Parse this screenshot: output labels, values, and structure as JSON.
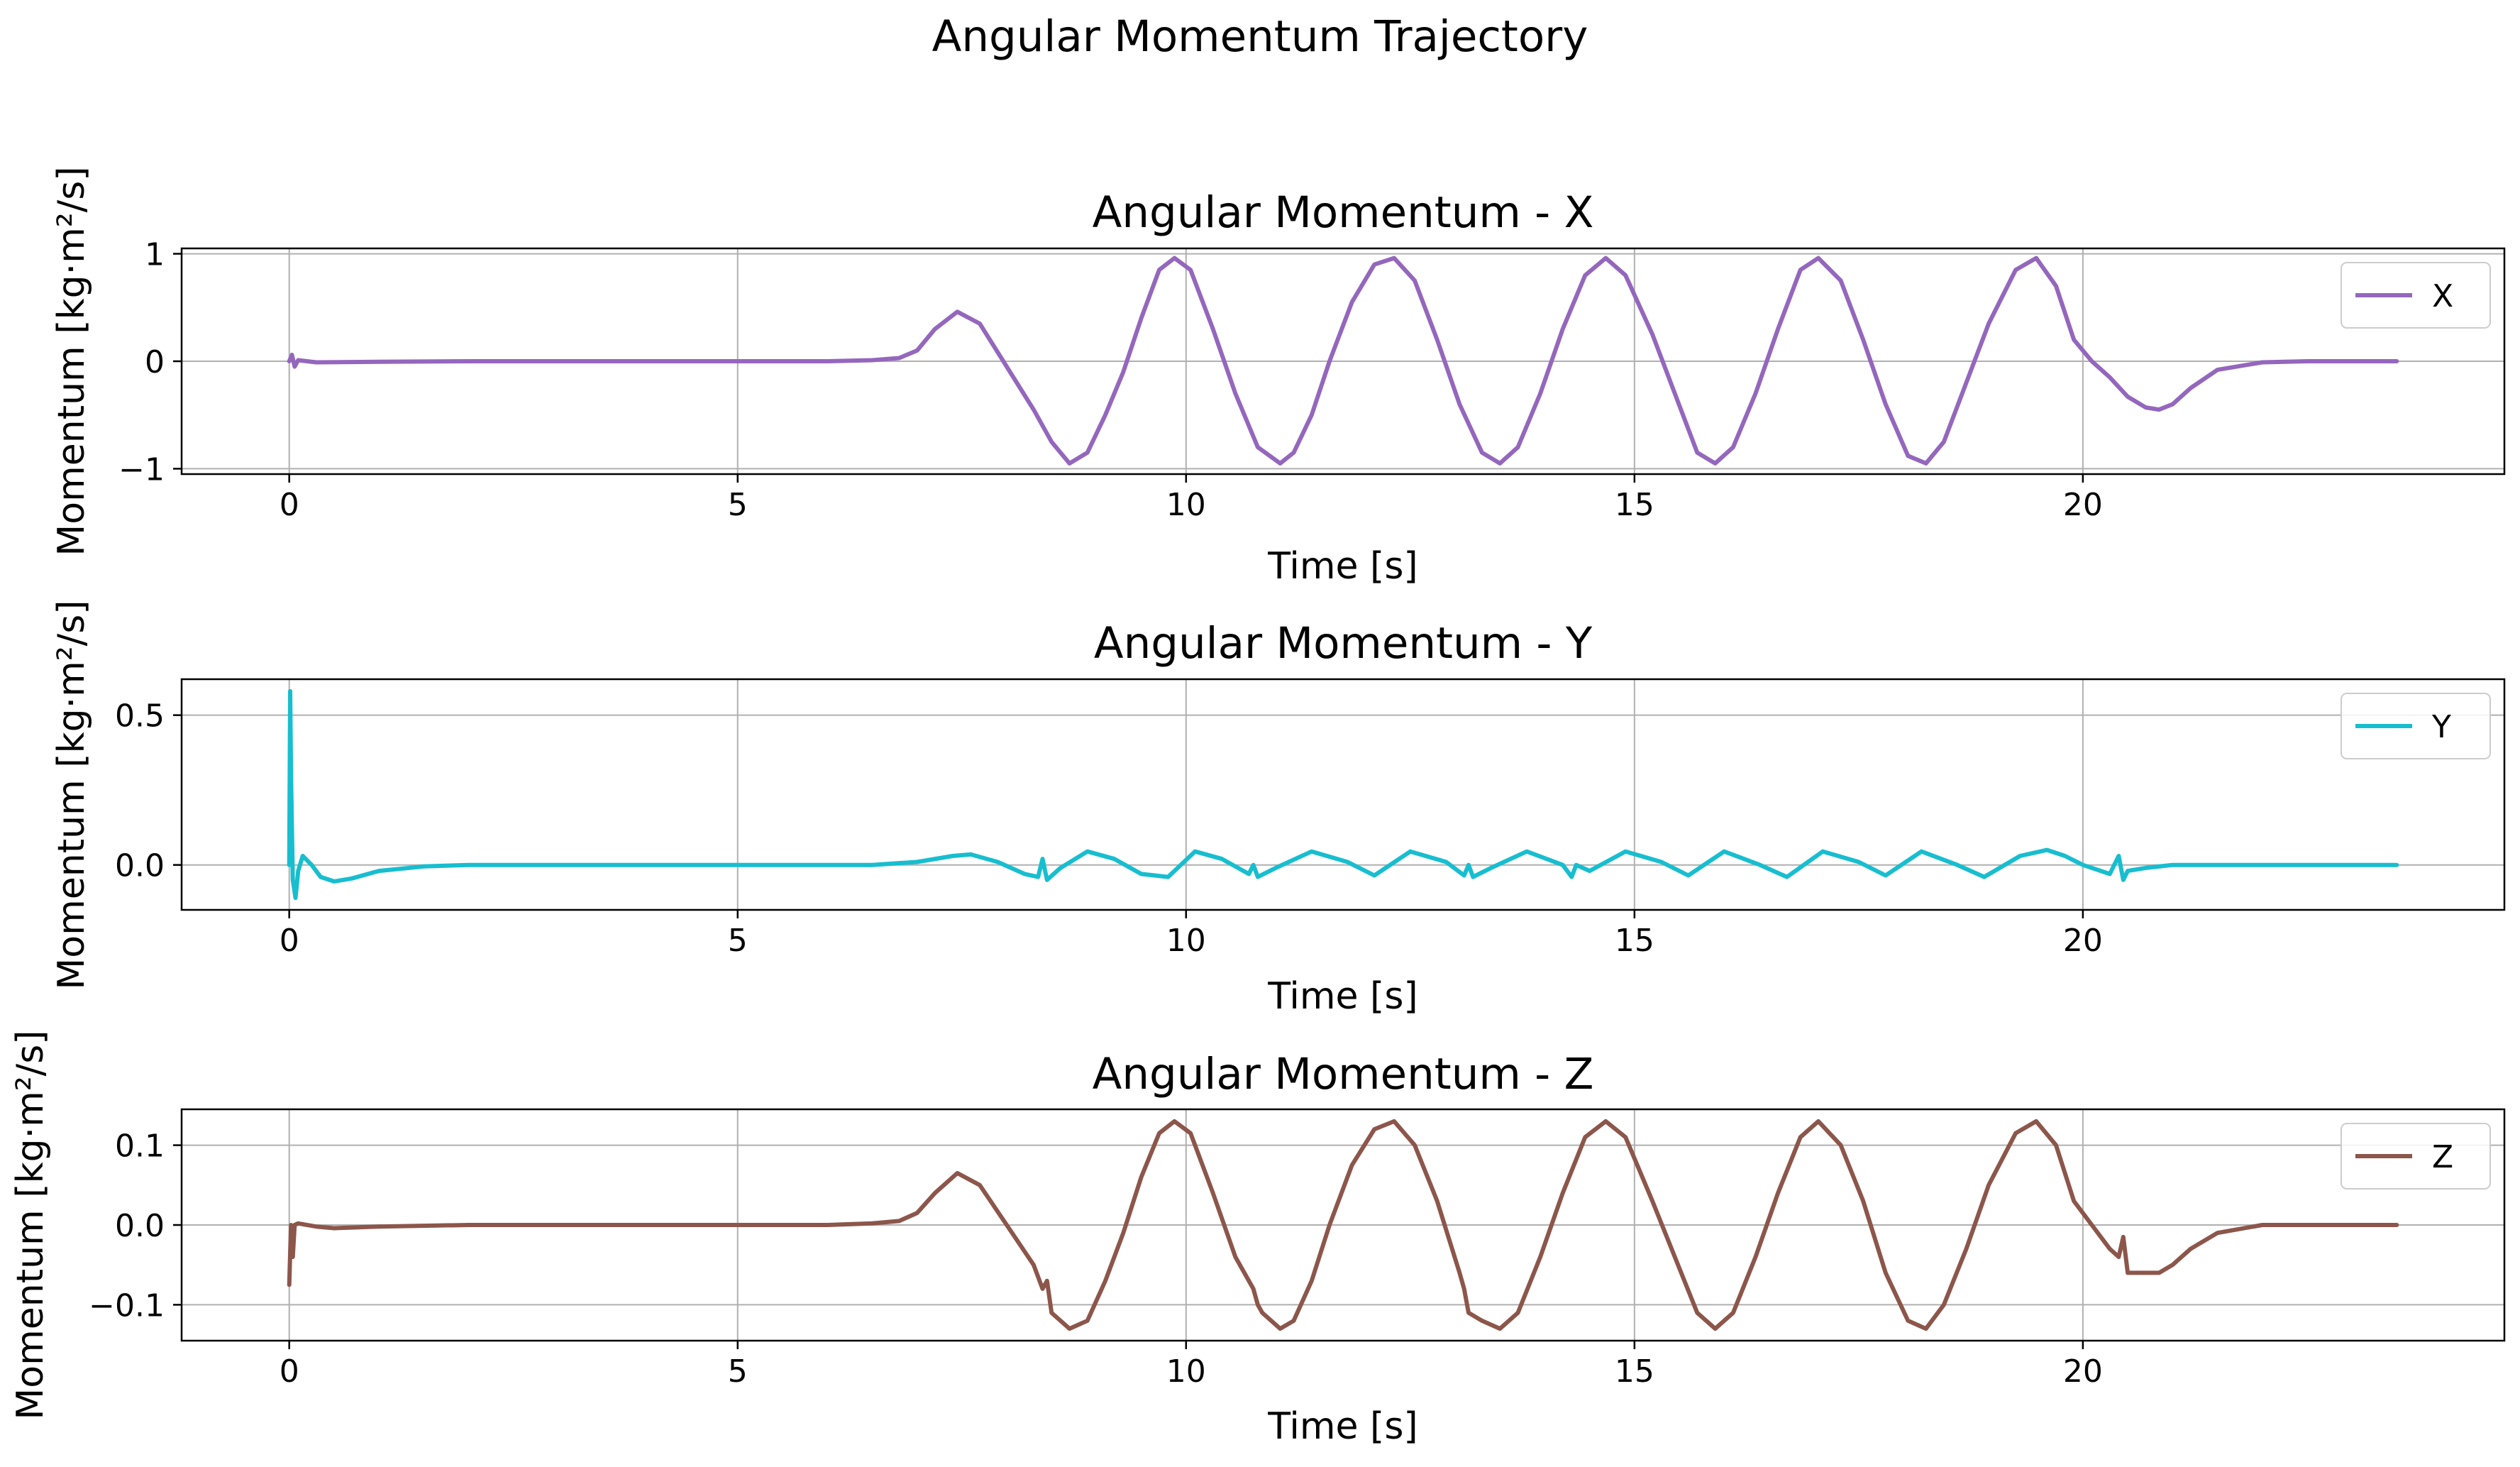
{
  "figure": {
    "suptitle": "Angular Momentum Trajectory"
  },
  "chart_data": [
    {
      "type": "line",
      "title": "Angular Momentum - X",
      "xlabel": "Time [s]",
      "ylabel": "Momentum [kg·m²/s]",
      "xlim": [
        -1.2,
        24.7
      ],
      "ylim": [
        -1.05,
        1.05
      ],
      "xticks": [
        0,
        5,
        10,
        15,
        20
      ],
      "yticks": [
        -1,
        0,
        1
      ],
      "ytick_labels": [
        "−1",
        "0",
        "1"
      ],
      "grid": true,
      "legend": "upper right",
      "series": [
        {
          "name": "X",
          "color": "#9467bd",
          "x": [
            0,
            0.03,
            0.06,
            0.1,
            0.3,
            1,
            2,
            3,
            4,
            5,
            6,
            6.5,
            6.8,
            7.0,
            7.2,
            7.45,
            7.7,
            8.0,
            8.3,
            8.5,
            8.7,
            8.9,
            9.1,
            9.3,
            9.5,
            9.7,
            9.87,
            10.05,
            10.3,
            10.55,
            10.8,
            11.05,
            11.2,
            11.4,
            11.6,
            11.85,
            12.1,
            12.32,
            12.55,
            12.8,
            13.05,
            13.3,
            13.5,
            13.7,
            13.95,
            14.2,
            14.45,
            14.68,
            14.9,
            15.2,
            15.45,
            15.7,
            15.9,
            16.1,
            16.35,
            16.6,
            16.85,
            17.05,
            17.3,
            17.55,
            17.8,
            18.05,
            18.25,
            18.45,
            18.7,
            18.95,
            19.25,
            19.48,
            19.7,
            19.9,
            20.1,
            20.3,
            20.5,
            20.7,
            20.85,
            21.0,
            21.2,
            21.5,
            22,
            22.5,
            23,
            23.5
          ],
          "y": [
            0,
            0.06,
            -0.05,
            0.01,
            -0.01,
            -0.005,
            0,
            0,
            0,
            0,
            0,
            0.01,
            0.03,
            0.1,
            0.3,
            0.46,
            0.35,
            -0.05,
            -0.45,
            -0.75,
            -0.95,
            -0.85,
            -0.5,
            -0.1,
            0.4,
            0.85,
            0.96,
            0.85,
            0.3,
            -0.3,
            -0.8,
            -0.95,
            -0.85,
            -0.5,
            0,
            0.55,
            0.9,
            0.96,
            0.75,
            0.2,
            -0.4,
            -0.85,
            -0.95,
            -0.8,
            -0.3,
            0.3,
            0.8,
            0.96,
            0.8,
            0.25,
            -0.3,
            -0.85,
            -0.95,
            -0.8,
            -0.3,
            0.3,
            0.85,
            0.96,
            0.75,
            0.2,
            -0.4,
            -0.88,
            -0.95,
            -0.75,
            -0.2,
            0.35,
            0.85,
            0.96,
            0.7,
            0.2,
            0.0,
            -0.15,
            -0.33,
            -0.43,
            -0.45,
            -0.4,
            -0.25,
            -0.08,
            -0.01,
            0,
            0,
            0
          ]
        }
      ]
    },
    {
      "type": "line",
      "title": "Angular Momentum - Y",
      "xlabel": "Time [s]",
      "ylabel": "Momentum [kg·m²/s]",
      "xlim": [
        -1.2,
        24.7
      ],
      "ylim": [
        -0.15,
        0.62
      ],
      "xticks": [
        0,
        5,
        10,
        15,
        20
      ],
      "yticks": [
        0.0,
        0.5
      ],
      "ytick_labels": [
        "0.0",
        "0.5"
      ],
      "grid": true,
      "legend": "upper right",
      "series": [
        {
          "name": "Y",
          "color": "#17becf",
          "x": [
            0,
            0.01,
            0.02,
            0.04,
            0.07,
            0.1,
            0.15,
            0.25,
            0.35,
            0.5,
            0.7,
            1.0,
            1.5,
            2,
            3,
            5,
            6.5,
            7.0,
            7.4,
            7.6,
            7.9,
            8.2,
            8.35,
            8.4,
            8.45,
            8.6,
            8.9,
            9.2,
            9.5,
            9.8,
            10.1,
            10.4,
            10.7,
            10.75,
            10.8,
            11.0,
            11.4,
            11.8,
            12.1,
            12.5,
            12.9,
            13.1,
            13.15,
            13.2,
            13.4,
            13.8,
            14.2,
            14.3,
            14.35,
            14.5,
            14.9,
            15.3,
            15.6,
            16.0,
            16.4,
            16.7,
            17.1,
            17.5,
            17.8,
            18.2,
            18.6,
            18.9,
            19.3,
            19.6,
            19.8,
            20.0,
            20.3,
            20.4,
            20.45,
            20.5,
            20.7,
            21,
            22,
            23,
            23.5
          ],
          "y": [
            0.0,
            0.58,
            0.3,
            -0.05,
            -0.11,
            -0.02,
            0.03,
            0.0,
            -0.04,
            -0.055,
            -0.045,
            -0.02,
            -0.005,
            0,
            0,
            0,
            0.0,
            0.01,
            0.03,
            0.035,
            0.01,
            -0.03,
            -0.04,
            0.02,
            -0.05,
            -0.01,
            0.045,
            0.02,
            -0.03,
            -0.04,
            0.045,
            0.02,
            -0.03,
            0.0,
            -0.04,
            -0.01,
            0.045,
            0.01,
            -0.035,
            0.045,
            0.01,
            -0.035,
            0.0,
            -0.04,
            -0.01,
            0.045,
            0.0,
            -0.04,
            0.0,
            -0.02,
            0.045,
            0.01,
            -0.035,
            0.045,
            0.0,
            -0.04,
            0.045,
            0.01,
            -0.035,
            0.045,
            0.0,
            -0.04,
            0.03,
            0.05,
            0.03,
            0.0,
            -0.03,
            0.03,
            -0.05,
            -0.02,
            -0.01,
            0,
            0,
            0,
            0
          ]
        }
      ]
    },
    {
      "type": "line",
      "title": "Angular Momentum - Z",
      "xlabel": "Time [s]",
      "ylabel": "Momentum [kg·m²/s]",
      "xlim": [
        -1.2,
        24.7
      ],
      "ylim": [
        -0.145,
        0.145
      ],
      "xticks": [
        0,
        5,
        10,
        15,
        20
      ],
      "yticks": [
        -0.1,
        0.0,
        0.1
      ],
      "ytick_labels": [
        "−0.1",
        "0.0",
        "0.1"
      ],
      "grid": true,
      "legend": "upper right",
      "series": [
        {
          "name": "Z",
          "color": "#8c564b",
          "x": [
            0,
            0.02,
            0.04,
            0.06,
            0.1,
            0.3,
            0.5,
            1,
            2,
            3,
            4,
            5,
            6,
            6.5,
            6.8,
            7.0,
            7.2,
            7.45,
            7.7,
            8.0,
            8.3,
            8.4,
            8.45,
            8.5,
            8.7,
            8.9,
            9.1,
            9.3,
            9.5,
            9.7,
            9.87,
            10.05,
            10.3,
            10.55,
            10.75,
            10.8,
            10.85,
            11.05,
            11.2,
            11.4,
            11.6,
            11.85,
            12.1,
            12.32,
            12.55,
            12.8,
            13.05,
            13.1,
            13.15,
            13.3,
            13.5,
            13.7,
            13.95,
            14.2,
            14.45,
            14.68,
            14.9,
            15.2,
            15.45,
            15.7,
            15.9,
            16.1,
            16.35,
            16.6,
            16.85,
            17.05,
            17.3,
            17.55,
            17.8,
            18.05,
            18.25,
            18.45,
            18.7,
            18.95,
            19.25,
            19.48,
            19.7,
            19.9,
            20.1,
            20.3,
            20.4,
            20.45,
            20.5,
            20.7,
            20.85,
            21.0,
            21.2,
            21.5,
            22,
            22.5,
            23,
            23.5
          ],
          "y": [
            -0.075,
            0.0,
            -0.04,
            0.0,
            0.002,
            -0.002,
            -0.004,
            -0.002,
            0,
            0,
            0,
            0,
            0,
            0.002,
            0.005,
            0.015,
            0.04,
            0.065,
            0.05,
            0.0,
            -0.05,
            -0.08,
            -0.07,
            -0.11,
            -0.13,
            -0.12,
            -0.07,
            -0.01,
            0.06,
            0.115,
            0.13,
            0.115,
            0.04,
            -0.04,
            -0.08,
            -0.1,
            -0.11,
            -0.13,
            -0.12,
            -0.07,
            0.0,
            0.075,
            0.12,
            0.13,
            0.1,
            0.03,
            -0.06,
            -0.08,
            -0.11,
            -0.12,
            -0.13,
            -0.11,
            -0.04,
            0.04,
            0.11,
            0.13,
            0.11,
            0.03,
            -0.04,
            -0.11,
            -0.13,
            -0.11,
            -0.04,
            0.04,
            0.11,
            0.13,
            0.1,
            0.03,
            -0.06,
            -0.12,
            -0.13,
            -0.1,
            -0.03,
            0.05,
            0.115,
            0.13,
            0.1,
            0.03,
            0.0,
            -0.03,
            -0.04,
            -0.015,
            -0.06,
            -0.06,
            -0.06,
            -0.05,
            -0.03,
            -0.01,
            0,
            0,
            0,
            0
          ]
        }
      ]
    }
  ]
}
